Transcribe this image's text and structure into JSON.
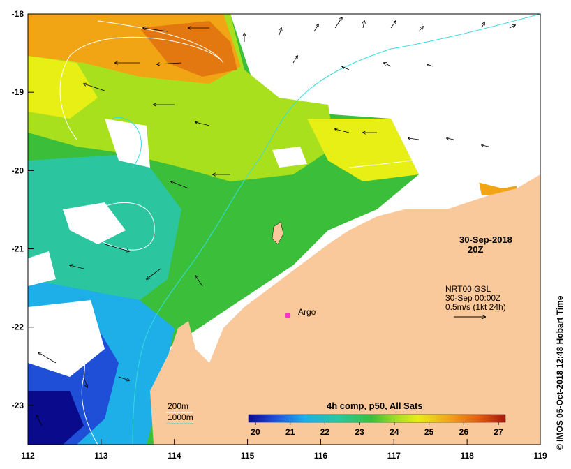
{
  "map": {
    "date_label": "30-Sep-2018",
    "time_label": "20Z",
    "current_source": "NRT00 GSL",
    "current_time": "30-Sep 00:00Z",
    "scale_label": "0.5m/s (1kt 24h)",
    "argo_label": "Argo",
    "legend_200m": "200m",
    "legend_1000m": "1000m",
    "colorbar_title": "4h comp, p50, All Sats",
    "credit": "© IMOS 05-Oct-2018 12:48 Hobart Time",
    "colors": {
      "land": "#f9c89b",
      "cloud": "#ffffff",
      "isobath_200": "#ffffff",
      "isobath_1000": "#33dddd",
      "argo": "#ff33cc"
    },
    "longitude_ticks": [
      "112",
      "113",
      "114",
      "115",
      "116",
      "117",
      "118",
      "119"
    ],
    "latitude_ticks": [
      "-18",
      "-19",
      "-20",
      "-21",
      "-22",
      "-23"
    ],
    "colorbar_ticks": [
      "20",
      "21",
      "22",
      "23",
      "24",
      "25",
      "26",
      "27"
    ],
    "lon_range": [
      112,
      119
    ],
    "lat_range": [
      -23.5,
      -18
    ],
    "sst_range": [
      19.8,
      27.2
    ],
    "argo_position": {
      "lon": 115.55,
      "lat": -21.85
    }
  }
}
